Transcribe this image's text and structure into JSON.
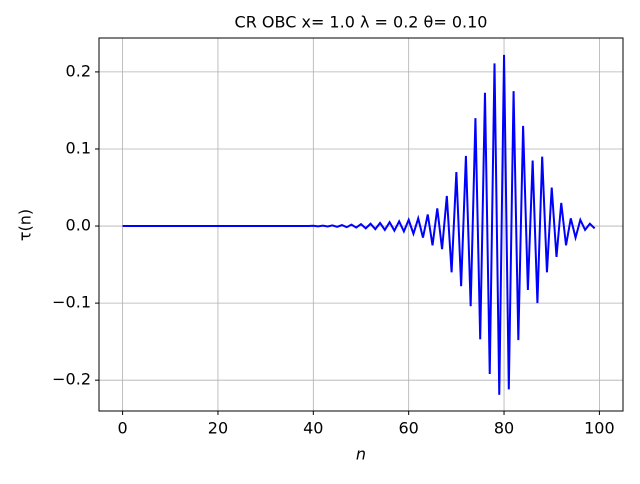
{
  "chart_data": {
    "type": "line",
    "title": "CR OBC x= 1.0 λ = 0.2 θ= 0.10",
    "xlabel": "n",
    "ylabel": "τ(n)",
    "x": [
      0,
      1,
      2,
      3,
      4,
      5,
      6,
      7,
      8,
      9,
      10,
      11,
      12,
      13,
      14,
      15,
      16,
      17,
      18,
      19,
      20,
      21,
      22,
      23,
      24,
      25,
      26,
      27,
      28,
      29,
      30,
      31,
      32,
      33,
      34,
      35,
      36,
      37,
      38,
      39,
      40,
      41,
      42,
      43,
      44,
      45,
      46,
      47,
      48,
      49,
      50,
      51,
      52,
      53,
      54,
      55,
      56,
      57,
      58,
      59,
      60,
      61,
      62,
      63,
      64,
      65,
      66,
      67,
      68,
      69,
      70,
      71,
      72,
      73,
      74,
      75,
      76,
      77,
      78,
      79,
      80,
      81,
      82,
      83,
      84,
      85,
      86,
      87,
      88,
      89,
      90,
      91,
      92,
      93,
      94,
      95,
      96,
      97,
      98,
      99
    ],
    "values": [
      0,
      0,
      0,
      0,
      0,
      0,
      0,
      0,
      0,
      0,
      0,
      0,
      0,
      0,
      0,
      0,
      0,
      0,
      0,
      0,
      0,
      0,
      0,
      0,
      0,
      0,
      0,
      0,
      0,
      0,
      0,
      0,
      0,
      0,
      0,
      0,
      0,
      0,
      0,
      0,
      0.0003,
      -0.0004,
      0.0005,
      -0.0006,
      0.0008,
      -0.001,
      0.0012,
      -0.0015,
      0.0018,
      -0.002,
      0.0025,
      -0.003,
      0.003,
      -0.004,
      0.004,
      -0.005,
      0.005,
      -0.006,
      0.006,
      -0.007,
      0.008,
      -0.01,
      0.01,
      -0.015,
      0.015,
      -0.025,
      0.023,
      -0.03,
      0.039,
      -0.06,
      0.07,
      -0.078,
      0.091,
      -0.104,
      0.14,
      -0.147,
      0.173,
      -0.192,
      0.211,
      -0.219,
      0.222,
      -0.212,
      0.175,
      -0.148,
      0.13,
      -0.083,
      0.085,
      -0.1,
      0.09,
      -0.06,
      0.05,
      -0.04,
      0.03,
      -0.025,
      0.01,
      -0.015,
      0.008,
      -0.005,
      0.003,
      -0.003
    ],
    "color": "#0000ff",
    "xlim": [
      -4.95,
      104.95
    ],
    "ylim": [
      -0.24,
      0.244
    ],
    "xticks": [
      0,
      20,
      40,
      60,
      80,
      100
    ],
    "yticks": [
      {
        "value": -0.2,
        "label": "−0.2"
      },
      {
        "value": -0.1,
        "label": "−0.1"
      },
      {
        "value": 0,
        "label": "0.0"
      },
      0.1,
      0.2
    ],
    "grid": true
  }
}
